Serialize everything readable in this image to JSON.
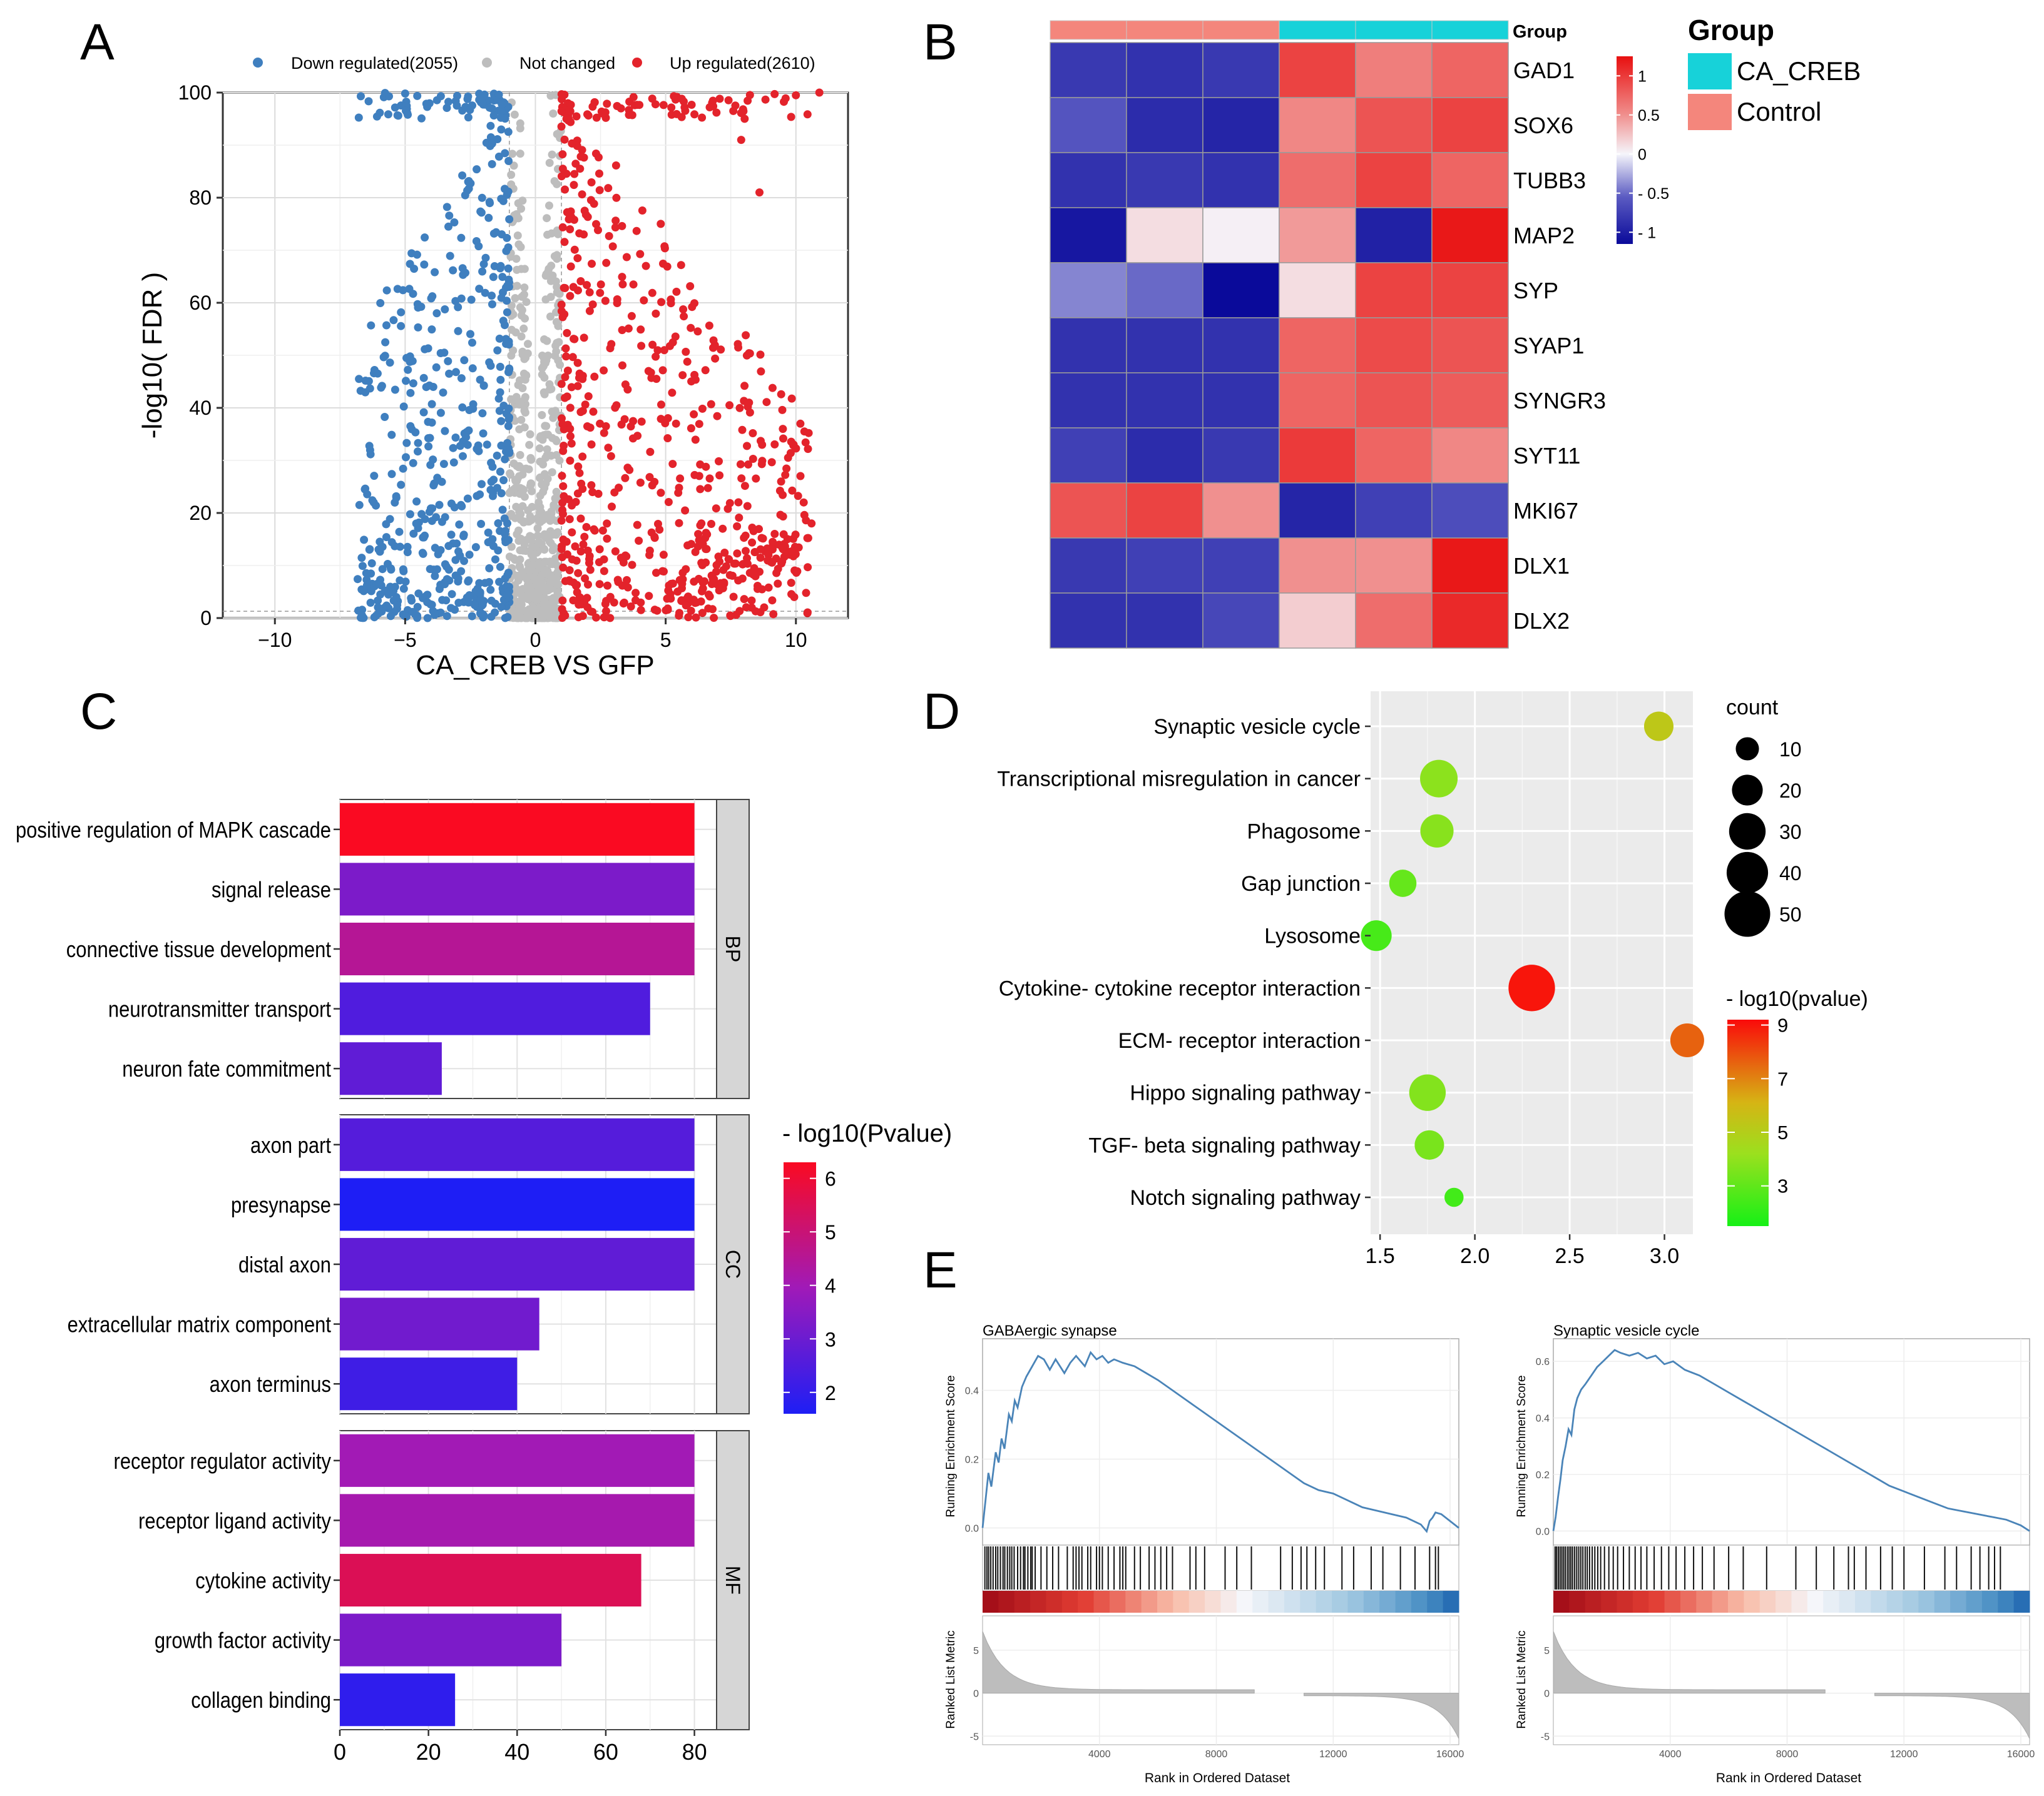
{
  "panel_labels": [
    "A",
    "B",
    "C",
    "D",
    "E"
  ],
  "colors": {
    "down": "#3f7fbf",
    "not_changed": "#bdbdbd",
    "up": "#e3232b",
    "ca_creb": "#17d2d9",
    "control": "#f4867c",
    "gsea_line": "#4a84b8"
  },
  "chart_data": [
    {
      "id": "A",
      "type": "scatter",
      "title": "",
      "xlabel": "CA_CREB VS GFP",
      "ylabel": "-log10( FDR )",
      "xlim": [
        -12,
        12
      ],
      "ylim": [
        0,
        100
      ],
      "xticks": [
        -10,
        -5,
        0,
        5,
        10
      ],
      "yticks": [
        0,
        20,
        40,
        60,
        80,
        100
      ],
      "grid": true,
      "legend_position": "top",
      "legend": [
        {
          "key": "down",
          "label": "Down regulated(2055)"
        },
        {
          "key": "not_changed",
          "label": "Not changed"
        },
        {
          "key": "up",
          "label": "Up regulated(2610)"
        }
      ],
      "series": [
        {
          "name": "Down regulated",
          "count": 2055,
          "x_range": [
            -7.2,
            -1
          ],
          "y_range": [
            0,
            100
          ]
        },
        {
          "name": "Not changed",
          "x_range": [
            -1,
            1
          ],
          "y_range": [
            0,
            100
          ]
        },
        {
          "name": "Up regulated",
          "count": 2610,
          "x_range": [
            1,
            10.9
          ],
          "y_range": [
            0,
            100
          ]
        }
      ],
      "thresholds": {
        "log2fc": [
          -1,
          1
        ],
        "fdr_line_y": 1.3
      }
    },
    {
      "id": "B",
      "type": "heatmap",
      "genes": [
        "GAD1",
        "SOX6",
        "TUBB3",
        "MAP2",
        "SYP",
        "SYAP1",
        "SYNGR3",
        "SYT11",
        "MKI67",
        "DLX1",
        "DLX2"
      ],
      "column_groups": [
        "Control",
        "Control",
        "Control",
        "CA_CREB",
        "CA_CREB",
        "CA_CREB"
      ],
      "group_label": "Group",
      "legend_title": "Group",
      "legend_entries": [
        "CA_CREB",
        "Control"
      ],
      "colorbar": {
        "min": -1.15,
        "max": 1.25,
        "ticks": [
          {
            "v": 1,
            "label": "1"
          },
          {
            "v": 0.5,
            "label": "0.5"
          },
          {
            "v": 0,
            "label": "0"
          },
          {
            "v": -0.5,
            "label": "- 0.5"
          },
          {
            "v": -1,
            "label": "- 1"
          }
        ]
      },
      "values": [
        [
          -0.8,
          -0.85,
          -0.8,
          0.95,
          0.6,
          0.75
        ],
        [
          -0.6,
          -0.9,
          -0.95,
          0.55,
          0.85,
          0.95
        ],
        [
          -0.85,
          -0.8,
          -0.85,
          0.7,
          0.95,
          0.75
        ],
        [
          -1.05,
          0.12,
          0.03,
          0.45,
          -0.98,
          1.2
        ],
        [
          -0.4,
          -0.5,
          -1.15,
          0.12,
          0.95,
          0.95
        ],
        [
          -0.85,
          -0.85,
          -0.85,
          0.75,
          0.9,
          0.85
        ],
        [
          -0.85,
          -0.85,
          -0.85,
          0.75,
          0.85,
          0.8
        ],
        [
          -0.75,
          -0.9,
          -0.8,
          1.0,
          0.75,
          0.55
        ],
        [
          0.85,
          0.95,
          0.5,
          -0.95,
          -0.75,
          -0.65
        ],
        [
          -0.8,
          -0.75,
          -0.75,
          0.5,
          0.5,
          1.2
        ],
        [
          -0.85,
          -0.85,
          -0.7,
          0.2,
          0.7,
          1.1
        ]
      ]
    },
    {
      "id": "C",
      "type": "bar",
      "orientation": "horizontal",
      "xlim": [
        0,
        85
      ],
      "xticks": [
        0,
        20,
        40,
        60,
        80
      ],
      "colorbar_title": "- log10(Pvalue)",
      "colorbar": {
        "min": 1.6,
        "max": 6.3,
        "ticks": [
          6,
          5,
          4,
          3,
          2
        ]
      },
      "groups": [
        {
          "name": "BP",
          "categories": [
            "positive regulation of MAPK cascade",
            "signal release",
            "connective tissue development",
            "neurotransmitter transport",
            "neuron fate commitment"
          ],
          "values": [
            80,
            80,
            80,
            70,
            23
          ],
          "neglog10p": [
            6.3,
            3.3,
            4.5,
            2.5,
            2.8
          ]
        },
        {
          "name": "CC",
          "categories": [
            "axon part",
            "presynapse",
            "distal axon",
            "extracellular matrix component",
            "axon terminus"
          ],
          "values": [
            80,
            80,
            80,
            45,
            40
          ],
          "neglog10p": [
            2.6,
            1.6,
            2.8,
            3.1,
            2.2
          ]
        },
        {
          "name": "MF",
          "categories": [
            "receptor regulator activity",
            "receptor ligand activity",
            "cytokine activity",
            "growth factor activity",
            "collagen binding"
          ],
          "values": [
            80,
            80,
            68,
            50,
            26
          ],
          "neglog10p": [
            4.0,
            4.1,
            5.5,
            3.3,
            1.9
          ]
        }
      ]
    },
    {
      "id": "D",
      "type": "scatter",
      "subtype": "bubble",
      "xlim": [
        1.45,
        3.15
      ],
      "xticks": [
        1.5,
        2.0,
        2.5,
        3.0
      ],
      "tick_labels": [
        "1.5",
        "2.0",
        "2.5",
        "3.0"
      ],
      "grid": true,
      "categories": [
        "Synaptic vesicle cycle",
        "Transcriptional misregulation in cancer",
        "Phagosome",
        "Gap junction",
        "Lysosome",
        "Cytokine- cytokine receptor interaction",
        "ECM- receptor interaction",
        "Hippo signaling pathway",
        "TGF- beta signaling pathway",
        "Notch signaling pathway"
      ],
      "x": [
        2.97,
        1.81,
        1.8,
        1.62,
        1.48,
        2.3,
        3.12,
        1.75,
        1.76,
        1.89
      ],
      "count": [
        18,
        32,
        24,
        15,
        20,
        52,
        25,
        30,
        18,
        6
      ],
      "neglog10p": [
        5.3,
        3.9,
        3.8,
        3.1,
        2.5,
        9.0,
        7.6,
        3.7,
        3.5,
        2.4
      ],
      "size_legend_title": "count",
      "size_legend": [
        10,
        20,
        30,
        40,
        50
      ],
      "color_legend_title": "- log10(pvalue)",
      "colorbar": {
        "min": 1.5,
        "max": 9.2,
        "ticks": [
          9,
          7,
          5,
          3
        ]
      }
    },
    {
      "id": "E1",
      "type": "line",
      "title": "GABAergic synapse",
      "ylabel_top": "Running Enrichment Score",
      "ylabel_bottom": "Ranked List Metric",
      "xlabel": "Rank in Ordered Dataset",
      "xlim": [
        0,
        16300
      ],
      "xticks": [
        4000,
        8000,
        12000,
        16000
      ],
      "ylim": [
        -0.05,
        0.55
      ],
      "yticks": [
        0.0,
        0.2,
        0.4
      ],
      "ytick_labels": [
        "0.0",
        "0.2",
        "0.4"
      ],
      "metric_ylim": [
        -6,
        9
      ],
      "metric_yticks": [
        -5,
        0,
        5
      ],
      "x": [
        0,
        100,
        200,
        300,
        450,
        550,
        650,
        750,
        900,
        1000,
        1100,
        1200,
        1350,
        1500,
        1700,
        1900,
        2100,
        2300,
        2500,
        2800,
        3000,
        3200,
        3500,
        3700,
        3900,
        4100,
        4300,
        4500,
        4800,
        5200,
        5600,
        6000,
        6500,
        7000,
        7500,
        8000,
        8500,
        9000,
        9500,
        10000,
        10500,
        11000,
        11500,
        12000,
        12500,
        13000,
        13500,
        14000,
        14500,
        15000,
        15200,
        15300,
        15400,
        15500,
        15700,
        16000,
        16300
      ],
      "y": [
        0,
        0.08,
        0.16,
        0.12,
        0.22,
        0.19,
        0.26,
        0.23,
        0.33,
        0.31,
        0.37,
        0.35,
        0.41,
        0.44,
        0.47,
        0.5,
        0.49,
        0.46,
        0.49,
        0.45,
        0.48,
        0.5,
        0.47,
        0.51,
        0.49,
        0.5,
        0.48,
        0.49,
        0.48,
        0.47,
        0.45,
        0.43,
        0.4,
        0.37,
        0.34,
        0.31,
        0.28,
        0.25,
        0.22,
        0.19,
        0.16,
        0.13,
        0.11,
        0.1,
        0.08,
        0.06,
        0.05,
        0.04,
        0.03,
        0.01,
        -0.01,
        0.02,
        0.03,
        0.045,
        0.04,
        0.02,
        0.0
      ],
      "hits": [
        80,
        150,
        210,
        280,
        360,
        450,
        520,
        610,
        700,
        760,
        850,
        930,
        1000,
        1080,
        1200,
        1300,
        1400,
        1450,
        1550,
        1650,
        1700,
        1800,
        2000,
        2200,
        2400,
        2600,
        2900,
        3100,
        3200,
        3300,
        3400,
        3600,
        3700,
        3900,
        4000,
        4100,
        4300,
        4500,
        4700,
        4800,
        4900,
        5200,
        5400,
        5700,
        5900,
        6100,
        6300,
        6500,
        7100,
        7300,
        7600,
        8300,
        8700,
        9200,
        10200,
        10600,
        10900,
        11100,
        11400,
        11700,
        12300,
        12700,
        13300,
        13700,
        14300,
        14800,
        15300,
        15500,
        15600
      ]
    },
    {
      "id": "E2",
      "type": "line",
      "title": "Synaptic vesicle cycle",
      "ylabel_top": "Running Enrichment Score",
      "ylabel_bottom": "Ranked List Metric",
      "xlabel": "Rank in Ordered Dataset",
      "xlim": [
        0,
        16300
      ],
      "xticks": [
        4000,
        8000,
        12000,
        16000
      ],
      "ylim": [
        -0.05,
        0.68
      ],
      "yticks": [
        0.0,
        0.2,
        0.4,
        0.6
      ],
      "ytick_labels": [
        "0.0",
        "0.2",
        "0.4",
        "0.6"
      ],
      "metric_ylim": [
        -6,
        9
      ],
      "metric_yticks": [
        -5,
        0,
        5
      ],
      "x": [
        0,
        80,
        160,
        240,
        320,
        420,
        520,
        620,
        720,
        820,
        950,
        1100,
        1300,
        1500,
        1700,
        1900,
        2100,
        2300,
        2600,
        2900,
        3200,
        3500,
        3800,
        4100,
        4500,
        5000,
        5500,
        6000,
        6500,
        7000,
        7500,
        8000,
        8500,
        9000,
        9500,
        10000,
        10500,
        11000,
        11500,
        12000,
        12500,
        13000,
        13500,
        14000,
        14500,
        15000,
        15500,
        16000,
        16300
      ],
      "y": [
        0,
        0.05,
        0.12,
        0.18,
        0.25,
        0.3,
        0.36,
        0.34,
        0.43,
        0.47,
        0.5,
        0.52,
        0.55,
        0.58,
        0.6,
        0.62,
        0.64,
        0.63,
        0.62,
        0.63,
        0.61,
        0.62,
        0.59,
        0.6,
        0.57,
        0.55,
        0.52,
        0.49,
        0.46,
        0.43,
        0.4,
        0.37,
        0.34,
        0.31,
        0.28,
        0.25,
        0.22,
        0.19,
        0.16,
        0.14,
        0.12,
        0.1,
        0.08,
        0.07,
        0.06,
        0.05,
        0.04,
        0.02,
        0.0
      ],
      "hits": [
        60,
        110,
        170,
        230,
        290,
        350,
        410,
        480,
        540,
        600,
        660,
        730,
        800,
        870,
        940,
        1010,
        1090,
        1160,
        1240,
        1330,
        1420,
        1520,
        1620,
        1750,
        1900,
        2050,
        2200,
        2400,
        2600,
        2800,
        3000,
        3200,
        3450,
        3700,
        3950,
        4200,
        4500,
        4800,
        5100,
        5500,
        6000,
        6500,
        7300,
        8300,
        9000,
        9600,
        10100,
        10300,
        10700,
        11200,
        11600,
        12000,
        12700,
        13400,
        13800,
        14300,
        14600,
        14900,
        15100,
        15300
      ]
    }
  ]
}
